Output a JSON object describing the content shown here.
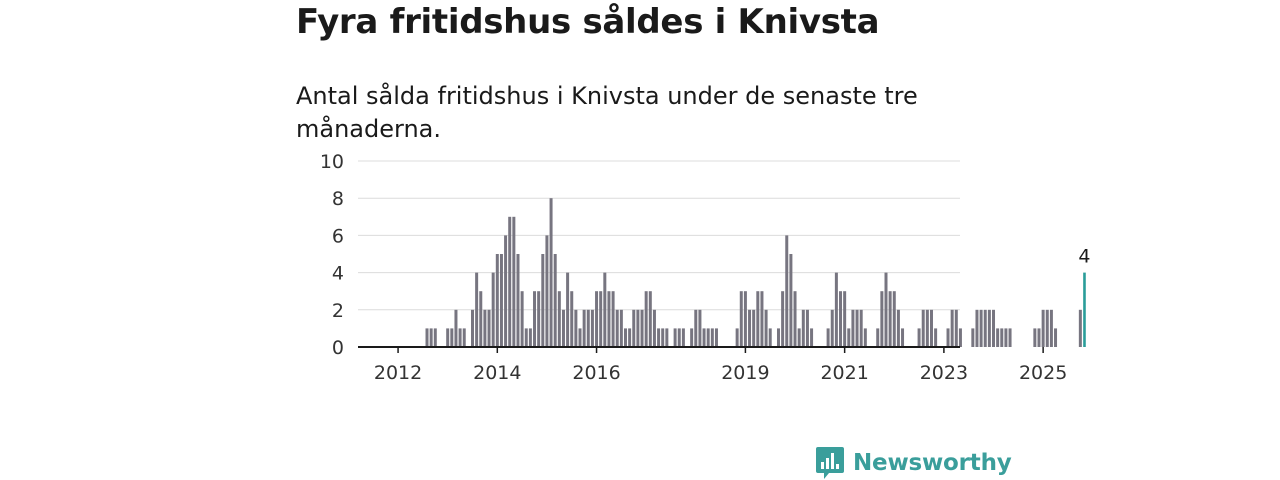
{
  "title": "Fyra fritidshus såldes i Knivsta",
  "subtitle": "Antal sålda fritidshus i Knivsta under de senaste tre månaderna.",
  "brand": {
    "name": "Newsworthy",
    "icon": "bar-chart-bubble-icon",
    "color": "#3a9e9b"
  },
  "chart_data": {
    "type": "bar",
    "title": "Fyra fritidshus såldes i Knivsta",
    "xlabel": "",
    "ylabel": "",
    "ylim": [
      0,
      10
    ],
    "yticks": [
      0,
      2,
      4,
      6,
      8,
      10
    ],
    "grid": true,
    "x_start": "2011-11",
    "x_ticks": [
      {
        "label": "2012",
        "index": 2
      },
      {
        "label": "2014",
        "index": 26
      },
      {
        "label": "2016",
        "index": 50
      },
      {
        "label": "2019",
        "index": 86
      },
      {
        "label": "2021",
        "index": 110
      },
      {
        "label": "2023",
        "index": 134
      },
      {
        "label": "2025",
        "index": 158
      }
    ],
    "bar_color": "#777580",
    "highlight_color": "#2a9d99",
    "highlight_label": "4",
    "values": [
      0,
      0,
      0,
      0,
      0,
      0,
      0,
      0,
      0,
      1,
      1,
      1,
      0,
      0,
      1,
      1,
      2,
      1,
      1,
      0,
      2,
      4,
      3,
      2,
      2,
      4,
      5,
      5,
      6,
      7,
      7,
      5,
      3,
      1,
      1,
      3,
      3,
      5,
      6,
      8,
      5,
      3,
      2,
      4,
      3,
      2,
      1,
      2,
      2,
      2,
      3,
      3,
      4,
      3,
      3,
      2,
      2,
      1,
      1,
      2,
      2,
      2,
      3,
      3,
      2,
      1,
      1,
      1,
      0,
      1,
      1,
      1,
      0,
      1,
      2,
      2,
      1,
      1,
      1,
      1,
      0,
      0,
      0,
      0,
      1,
      3,
      3,
      2,
      2,
      3,
      3,
      2,
      1,
      0,
      1,
      3,
      6,
      5,
      3,
      1,
      2,
      2,
      1,
      0,
      0,
      0,
      1,
      2,
      4,
      3,
      3,
      1,
      2,
      2,
      2,
      1,
      0,
      0,
      1,
      3,
      4,
      3,
      3,
      2,
      1,
      0,
      0,
      0,
      1,
      2,
      2,
      2,
      1,
      0,
      0,
      1,
      2,
      2,
      1,
      0,
      0,
      1,
      2,
      2,
      2,
      2,
      2,
      1,
      1,
      1,
      1,
      0,
      0,
      0,
      0,
      0,
      1,
      1,
      2,
      2,
      2,
      1,
      0,
      0,
      0,
      0,
      0,
      2,
      4
    ]
  }
}
